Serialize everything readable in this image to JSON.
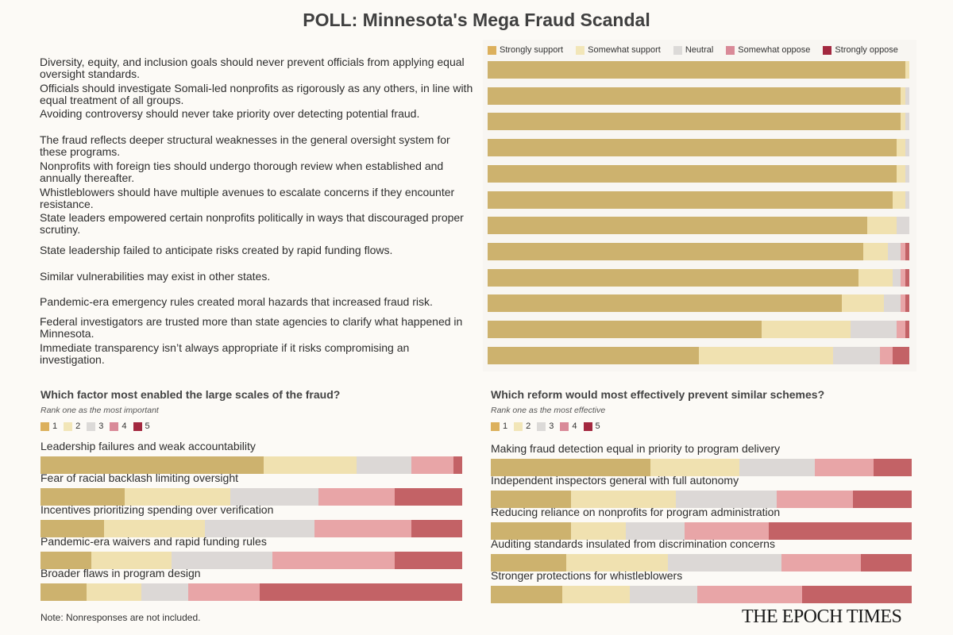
{
  "title": "POLL: Minnesota's Mega Fraud Scandal",
  "colors": {
    "bar": [
      "#cdb26e",
      "#f0e1b0",
      "#dcd8d6",
      "#e8a5a7",
      "#c36266"
    ],
    "legend": [
      "#dcb05c",
      "#f2e6b8",
      "#dcdad8",
      "#d98a98",
      "#a3283f"
    ]
  },
  "chart_data": [
    {
      "type": "bar",
      "orientation": "horizontal",
      "stacked": true,
      "legend_position": "top",
      "xlim": [
        0,
        100
      ],
      "legend": [
        "Strongly support",
        "Somewhat support",
        "Neutral",
        "Somewhat oppose",
        "Strongly oppose"
      ],
      "categories": [
        "Diversity, equity, and inclusion goals should never prevent officials from applying equal oversight standards.",
        "Officials should investigate Somali-led nonprofits as rigorously as any others, in line with equal treatment of all groups.",
        "Avoiding controversy should never take priority over detecting potential fraud.",
        "The fraud reflects deeper structural weaknesses in the general oversight system for these programs.",
        "Nonprofits with foreign ties should undergo thorough review when established and annually thereafter.",
        "Whistleblowers should have multiple avenues to escalate concerns if they encounter resistance.",
        "State leaders empowered certain nonprofits politically in ways that discouraged proper scrutiny.",
        "State leadership failed to anticipate risks created by rapid funding flows.",
        "Similar vulnerabilities may exist in other states.",
        "Pandemic-era emergency rules created moral hazards that increased fraud risk.",
        "Federal investigators are trusted more than state agencies to clarify what happened in Minnesota.",
        "Immediate transparency isn’t always appropriate if it risks compromising an investigation."
      ],
      "values": [
        [
          99,
          1,
          0,
          0,
          0
        ],
        [
          98,
          1,
          1,
          0,
          0
        ],
        [
          98,
          1,
          1,
          0,
          0
        ],
        [
          97,
          2,
          1,
          0,
          0
        ],
        [
          97,
          2,
          1,
          0,
          0
        ],
        [
          96,
          3,
          1,
          0,
          0
        ],
        [
          90,
          7,
          3,
          0,
          0
        ],
        [
          89,
          6,
          3,
          1,
          1
        ],
        [
          88,
          8,
          2,
          1,
          1
        ],
        [
          84,
          10,
          4,
          1,
          1
        ],
        [
          65,
          21,
          11,
          2,
          1
        ],
        [
          50,
          32,
          11,
          3,
          4
        ]
      ]
    },
    {
      "type": "bar",
      "orientation": "horizontal",
      "stacked": true,
      "title": "Which factor most enabled the large scales of the fraud?",
      "subtitle": "Rank one as the most important",
      "legend_position": "top-left",
      "xlim": [
        0,
        100
      ],
      "legend": [
        "1",
        "2",
        "3",
        "4",
        "5"
      ],
      "categories": [
        "Leadership failures and weak accountability",
        "Fear of racial backlash limiting oversight",
        "Incentives prioritizing spending over verification",
        "Pandemic-era waivers and rapid funding rules",
        "Broader flaws in program design"
      ],
      "values": [
        [
          53,
          22,
          13,
          10,
          2
        ],
        [
          20,
          25,
          21,
          18,
          16
        ],
        [
          15,
          24,
          26,
          23,
          12
        ],
        [
          12,
          19,
          24,
          29,
          16
        ],
        [
          11,
          13,
          11,
          17,
          48
        ]
      ]
    },
    {
      "type": "bar",
      "orientation": "horizontal",
      "stacked": true,
      "title": "Which reform would most effectively prevent similar schemes?",
      "subtitle": "Rank one as the most effective",
      "legend_position": "top-left",
      "xlim": [
        0,
        100
      ],
      "legend": [
        "1",
        "2",
        "3",
        "4",
        "5"
      ],
      "categories": [
        "Making fraud detection equal in priority to program delivery",
        "Independent inspectors general with full autonomy",
        "Reducing reliance on nonprofits for program administration",
        "Auditing standards insulated from discrimination concerns",
        "Stronger protections for whistleblowers"
      ],
      "values": [
        [
          38,
          21,
          18,
          14,
          9
        ],
        [
          19,
          25,
          24,
          18,
          14
        ],
        [
          19,
          13,
          14,
          20,
          34
        ],
        [
          18,
          24,
          27,
          19,
          12
        ],
        [
          17,
          16,
          16,
          25,
          26
        ]
      ]
    }
  ],
  "note": "Note: Nonresponses are not included.",
  "logo": "THE EPOCH TIMES"
}
